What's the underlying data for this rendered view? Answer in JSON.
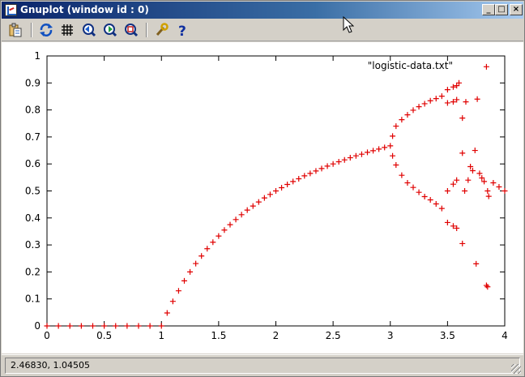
{
  "window": {
    "title": "Gnuplot (window id : 0)",
    "controls": {
      "minimize": "_",
      "maximize": "□",
      "close": "×"
    }
  },
  "toolbar": {
    "buttons": [
      {
        "name": "copy-clipboard-icon"
      },
      {
        "name": "replot-icon"
      },
      {
        "name": "grid-icon"
      },
      {
        "name": "zoom-prev-icon"
      },
      {
        "name": "zoom-next-icon"
      },
      {
        "name": "autoscale-icon"
      },
      {
        "name": "options-icon"
      },
      {
        "name": "help-icon"
      }
    ]
  },
  "status": {
    "coords": "2.46830,  1.04505"
  },
  "chart_data": {
    "type": "scatter",
    "title": "",
    "xlabel": "",
    "ylabel": "",
    "xlim": [
      0,
      4
    ],
    "ylim": [
      0,
      1
    ],
    "xticks": [
      "0",
      "0.5",
      "1",
      "1.5",
      "2",
      "2.5",
      "3",
      "3.5",
      "4"
    ],
    "yticks": [
      "0",
      "0.1",
      "0.2",
      "0.3",
      "0.4",
      "0.5",
      "0.6",
      "0.7",
      "0.8",
      "0.9",
      "1"
    ],
    "grid": false,
    "legend_position": "top-right",
    "marker": "+",
    "color": "#e00000",
    "series": [
      {
        "name": "\"logistic-data.txt\"",
        "points": [
          [
            0.0,
            0
          ],
          [
            0.1,
            0
          ],
          [
            0.2,
            0
          ],
          [
            0.3,
            0
          ],
          [
            0.4,
            0
          ],
          [
            0.5,
            0
          ],
          [
            0.6,
            0
          ],
          [
            0.7,
            0
          ],
          [
            0.8,
            0
          ],
          [
            0.9,
            0
          ],
          [
            1.0,
            0
          ],
          [
            1.05,
            0.048
          ],
          [
            1.1,
            0.091
          ],
          [
            1.15,
            0.13
          ],
          [
            1.2,
            0.167
          ],
          [
            1.25,
            0.2
          ],
          [
            1.3,
            0.231
          ],
          [
            1.35,
            0.259
          ],
          [
            1.4,
            0.286
          ],
          [
            1.45,
            0.31
          ],
          [
            1.5,
            0.333
          ],
          [
            1.55,
            0.355
          ],
          [
            1.6,
            0.375
          ],
          [
            1.65,
            0.394
          ],
          [
            1.7,
            0.412
          ],
          [
            1.75,
            0.429
          ],
          [
            1.8,
            0.444
          ],
          [
            1.85,
            0.459
          ],
          [
            1.9,
            0.474
          ],
          [
            1.95,
            0.487
          ],
          [
            2.0,
            0.5
          ],
          [
            2.05,
            0.512
          ],
          [
            2.1,
            0.524
          ],
          [
            2.15,
            0.535
          ],
          [
            2.2,
            0.545
          ],
          [
            2.25,
            0.556
          ],
          [
            2.3,
            0.565
          ],
          [
            2.35,
            0.574
          ],
          [
            2.4,
            0.583
          ],
          [
            2.45,
            0.592
          ],
          [
            2.5,
            0.6
          ],
          [
            2.55,
            0.608
          ],
          [
            2.6,
            0.615
          ],
          [
            2.65,
            0.623
          ],
          [
            2.7,
            0.63
          ],
          [
            2.75,
            0.636
          ],
          [
            2.8,
            0.643
          ],
          [
            2.85,
            0.649
          ],
          [
            2.9,
            0.655
          ],
          [
            2.95,
            0.661
          ],
          [
            3.0,
            0.667
          ],
          [
            3.02,
            0.703
          ],
          [
            3.05,
            0.74
          ],
          [
            3.1,
            0.764
          ],
          [
            3.15,
            0.782
          ],
          [
            3.2,
            0.799
          ],
          [
            3.25,
            0.812
          ],
          [
            3.3,
            0.823
          ],
          [
            3.35,
            0.834
          ],
          [
            3.4,
            0.842
          ],
          [
            3.45,
            0.851
          ],
          [
            3.02,
            0.63
          ],
          [
            3.05,
            0.596
          ],
          [
            3.1,
            0.558
          ],
          [
            3.15,
            0.53
          ],
          [
            3.2,
            0.513
          ],
          [
            3.25,
            0.495
          ],
          [
            3.3,
            0.479
          ],
          [
            3.35,
            0.467
          ],
          [
            3.4,
            0.452
          ],
          [
            3.45,
            0.435
          ],
          [
            3.5,
            0.875
          ],
          [
            3.55,
            0.885
          ],
          [
            3.58,
            0.89
          ],
          [
            3.5,
            0.826
          ],
          [
            3.55,
            0.83
          ],
          [
            3.58,
            0.838
          ],
          [
            3.5,
            0.383
          ],
          [
            3.55,
            0.37
          ],
          [
            3.58,
            0.362
          ],
          [
            3.5,
            0.5
          ],
          [
            3.55,
            0.525
          ],
          [
            3.58,
            0.54
          ],
          [
            3.6,
            0.9
          ],
          [
            3.63,
            0.77
          ],
          [
            3.63,
            0.64
          ],
          [
            3.63,
            0.305
          ],
          [
            3.65,
            0.5
          ],
          [
            3.66,
            0.83
          ],
          [
            3.68,
            0.54
          ],
          [
            3.7,
            0.59
          ],
          [
            3.72,
            0.575
          ],
          [
            3.74,
            0.65
          ],
          [
            3.75,
            0.23
          ],
          [
            3.76,
            0.84
          ],
          [
            3.78,
            0.565
          ],
          [
            3.8,
            0.548
          ],
          [
            3.82,
            0.535
          ],
          [
            3.84,
            0.96
          ],
          [
            3.84,
            0.15
          ],
          [
            3.85,
            0.145
          ],
          [
            3.85,
            0.5
          ],
          [
            3.86,
            0.48
          ],
          [
            3.9,
            0.53
          ],
          [
            3.95,
            0.515
          ],
          [
            4.0,
            0.5
          ]
        ]
      }
    ]
  }
}
